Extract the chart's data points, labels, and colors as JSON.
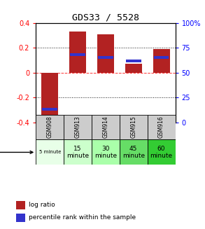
{
  "title": "GDS33 / 5528",
  "samples": [
    "GSM908",
    "GSM913",
    "GSM914",
    "GSM915",
    "GSM916"
  ],
  "times": [
    "5 minute",
    "15\nminute",
    "30\nminute",
    "45\nminute",
    "60\nminute"
  ],
  "log_ratios": [
    -0.35,
    0.33,
    0.31,
    0.07,
    0.19
  ],
  "percentile_ranks": [
    13,
    68,
    65,
    62,
    65
  ],
  "bar_color": "#b22222",
  "percentile_color": "#3333cc",
  "ylim": [
    -0.4,
    0.4
  ],
  "yticks_left": [
    -0.4,
    -0.2,
    0,
    0.2,
    0.4
  ],
  "yticks_right": [
    0,
    25,
    50,
    75,
    100
  ],
  "bar_width": 0.6,
  "time_colors": [
    "#e8ffe8",
    "#ccffcc",
    "#aaffaa",
    "#66dd66",
    "#33cc33"
  ],
  "gsm_bg": "#cccccc"
}
